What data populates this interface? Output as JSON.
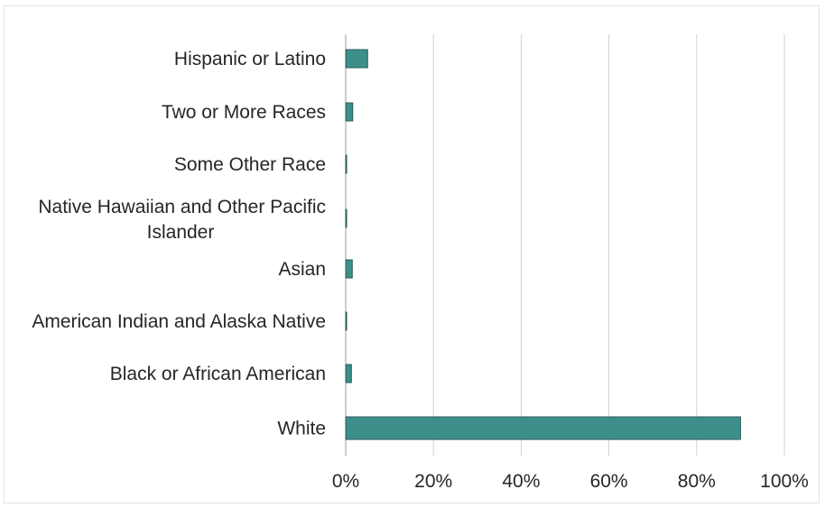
{
  "chart_data": {
    "type": "bar",
    "orientation": "horizontal",
    "title": "",
    "xlabel": "",
    "ylabel": "",
    "categories": [
      "Hispanic or Latino",
      "Two or More Races",
      "Some Other Race",
      "Native Hawaiian and Other Pacific Islander",
      "Asian",
      "American Indian and Alaska Native",
      "Black or African American",
      "White"
    ],
    "values": [
      0.05,
      0.016,
      0.002,
      0.002,
      0.015,
      0.002,
      0.013,
      0.9
    ],
    "xlim": [
      0,
      1
    ],
    "x_ticks": [
      0,
      0.2,
      0.4,
      0.6,
      0.8,
      1.0
    ],
    "x_tick_labels": [
      "0%",
      "20%",
      "40%",
      "60%",
      "80%",
      "100%"
    ],
    "grid": true,
    "legend": "none",
    "bar_color": "#3d8f8a"
  }
}
